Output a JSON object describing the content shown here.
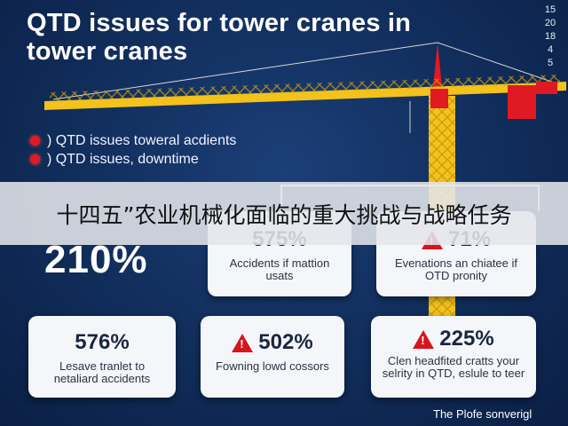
{
  "title": "QTD issues for tower cranes in tower cranes",
  "corner_numbers": [
    "15",
    "20",
    "18",
    "4",
    "5"
  ],
  "legend": [
    {
      "label": ") QTD issues toweral acdients"
    },
    {
      "label": ") QTD issues, downtime"
    }
  ],
  "big_stat": "210%",
  "top_cards": [
    {
      "value": "575%",
      "text": "Accidents if mattion usats"
    },
    {
      "value": "71%",
      "text": "Evenations an chiatee if OTD pronity"
    }
  ],
  "bottom_cards": [
    {
      "value": "576%",
      "text": "Lesave tranlet to netaliard accidents"
    },
    {
      "value": "502%",
      "text": "Fowning lowd cossors"
    },
    {
      "value": "225%",
      "text": "Clen headfited cratts your selrity in QTD, eslule to teer"
    }
  ],
  "banner_text": "十四五”农业机械化面临的重大挑战与战略任务",
  "footer": "The Plofe sonverigl",
  "colors": {
    "background": "#12305f",
    "crane_yellow": "#f3c21b",
    "alert_red": "#d7151c",
    "card": "#f4f6f9"
  }
}
